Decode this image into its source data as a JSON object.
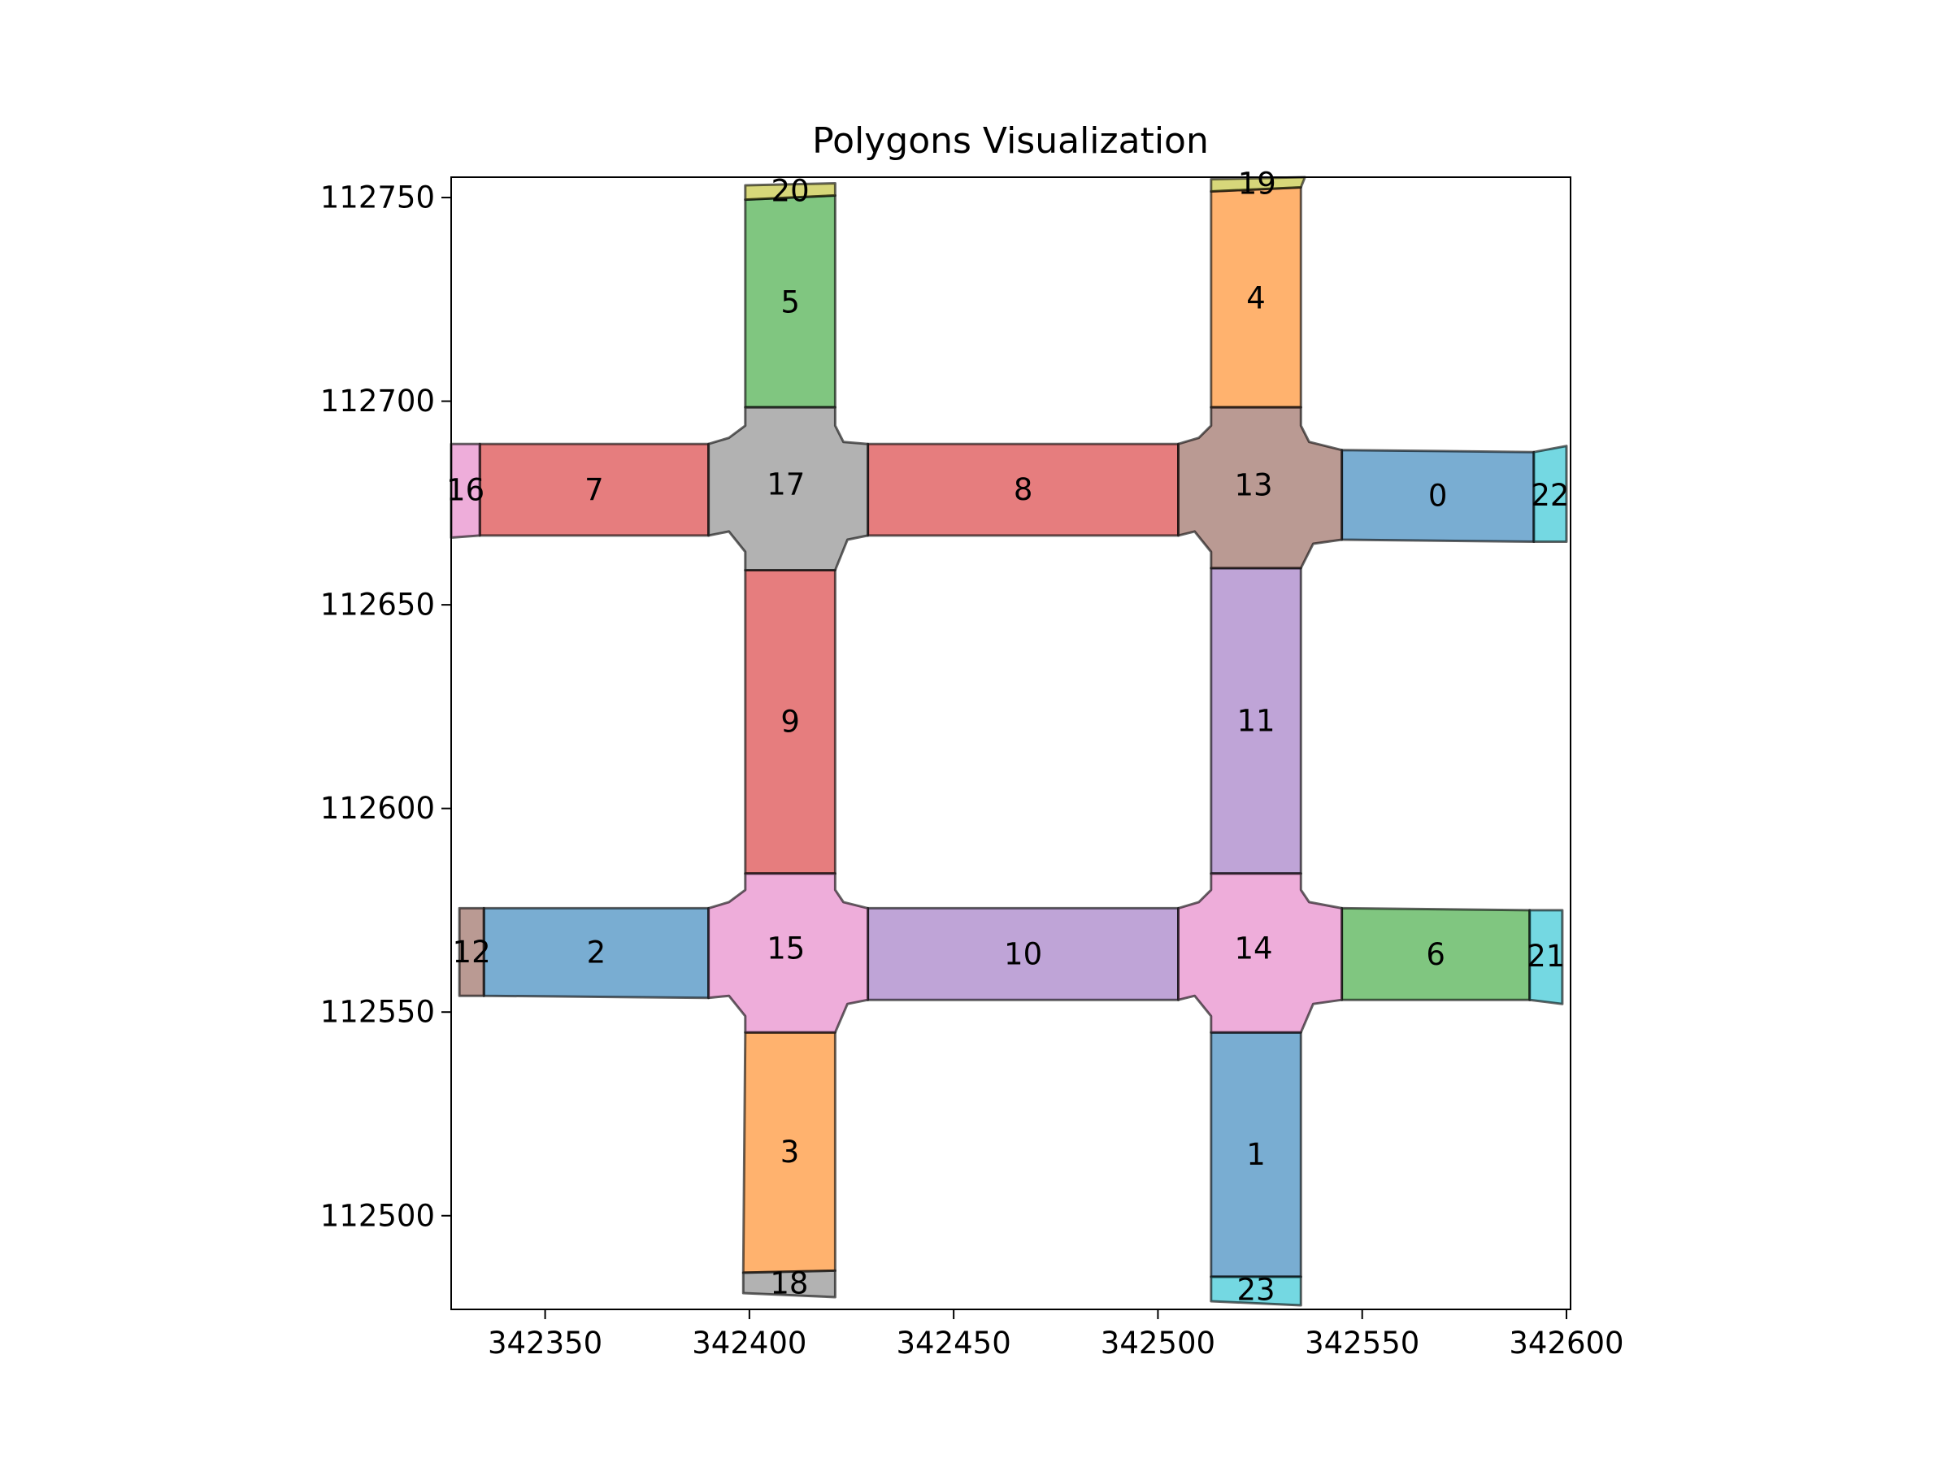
{
  "chart_data": {
    "type": "polygon-map",
    "title": "Polygons Visualization",
    "xlim": [
      342327,
      342601
    ],
    "ylim": [
      112477,
      112755
    ],
    "x_ticks": [
      {
        "value": 342350,
        "label": "342350"
      },
      {
        "value": 342400,
        "label": "342400"
      },
      {
        "value": 342450,
        "label": "342450"
      },
      {
        "value": 342500,
        "label": "342500"
      },
      {
        "value": 342550,
        "label": "342550"
      },
      {
        "value": 342600,
        "label": "342600"
      }
    ],
    "y_ticks": [
      {
        "value": 112750,
        "label": "112750"
      },
      {
        "value": 112700,
        "label": "112700"
      },
      {
        "value": 112650,
        "label": "112650"
      },
      {
        "value": 112600,
        "label": "112600"
      },
      {
        "value": 112550,
        "label": "112550"
      },
      {
        "value": 112500,
        "label": "112500"
      }
    ],
    "polygons": [
      {
        "id": "0",
        "label": "0",
        "color": "#1f77b4",
        "points": [
          [
            342545,
            112688
          ],
          [
            342592,
            112687.5
          ],
          [
            342592,
            112665.5
          ],
          [
            342545,
            112666
          ]
        ]
      },
      {
        "id": "1",
        "label": "1",
        "color": "#1f77b4",
        "points": [
          [
            342513,
            112545
          ],
          [
            342535,
            112545
          ],
          [
            342535,
            112485
          ],
          [
            342513,
            112485
          ]
        ]
      },
      {
        "id": "2",
        "label": "2",
        "color": "#1f77b4",
        "points": [
          [
            342335,
            112575.5
          ],
          [
            342390,
            112575.5
          ],
          [
            342390,
            112553.5
          ],
          [
            342335,
            112554
          ]
        ]
      },
      {
        "id": "3",
        "label": "3",
        "color": "#ff7f0e",
        "points": [
          [
            342399,
            112545
          ],
          [
            342421,
            112545
          ],
          [
            342421,
            112486.5
          ],
          [
            342398.5,
            112486
          ]
        ]
      },
      {
        "id": "4",
        "label": "4",
        "color": "#ff7f0e",
        "points": [
          [
            342513,
            112751.5
          ],
          [
            342535,
            112752.5
          ],
          [
            342535,
            112698.5
          ],
          [
            342513,
            112698.5
          ]
        ]
      },
      {
        "id": "5",
        "label": "5",
        "color": "#2ca02c",
        "points": [
          [
            342399,
            112749.5
          ],
          [
            342421,
            112750.5
          ],
          [
            342421,
            112698.5
          ],
          [
            342399,
            112698.5
          ]
        ]
      },
      {
        "id": "6",
        "label": "6",
        "color": "#2ca02c",
        "points": [
          [
            342545,
            112575.5
          ],
          [
            342591,
            112575
          ],
          [
            342591,
            112553
          ],
          [
            342545,
            112553
          ]
        ]
      },
      {
        "id": "7",
        "label": "7",
        "color": "#d62728",
        "points": [
          [
            342334,
            112689.5
          ],
          [
            342390,
            112689.5
          ],
          [
            342390,
            112667
          ],
          [
            342334,
            112667
          ]
        ]
      },
      {
        "id": "8",
        "label": "8",
        "color": "#d62728",
        "points": [
          [
            342429,
            112689.5
          ],
          [
            342505,
            112689.5
          ],
          [
            342505,
            112667
          ],
          [
            342429,
            112667
          ]
        ]
      },
      {
        "id": "9",
        "label": "9",
        "color": "#d62728",
        "points": [
          [
            342399,
            112658.5
          ],
          [
            342421,
            112658.5
          ],
          [
            342421,
            112584
          ],
          [
            342399,
            112584
          ]
        ]
      },
      {
        "id": "10",
        "label": "10",
        "color": "#9467bd",
        "points": [
          [
            342429,
            112575.5
          ],
          [
            342505,
            112575.5
          ],
          [
            342505,
            112553
          ],
          [
            342429,
            112553
          ]
        ]
      },
      {
        "id": "11",
        "label": "11",
        "color": "#9467bd",
        "points": [
          [
            342513,
            112659
          ],
          [
            342535,
            112659
          ],
          [
            342535,
            112584
          ],
          [
            342513,
            112584
          ]
        ]
      },
      {
        "id": "12",
        "label": "12",
        "color": "#8c564b",
        "points": [
          [
            342329,
            112575.5
          ],
          [
            342335,
            112575.5
          ],
          [
            342335,
            112554
          ],
          [
            342329,
            112554
          ]
        ]
      },
      {
        "id": "13",
        "label": "13",
        "color": "#8c564b",
        "points": [
          [
            342513,
            112698.5
          ],
          [
            342535,
            112698.5
          ],
          [
            342535,
            112694
          ],
          [
            342537,
            112690
          ],
          [
            342545,
            112688
          ],
          [
            342545,
            112666
          ],
          [
            342538,
            112665
          ],
          [
            342535,
            112659
          ],
          [
            342513,
            112659
          ],
          [
            342513,
            112663
          ],
          [
            342509,
            112668
          ],
          [
            342505,
            112667
          ],
          [
            342505,
            112689.5
          ],
          [
            342510,
            112691
          ],
          [
            342513,
            112694
          ]
        ]
      },
      {
        "id": "14",
        "label": "14",
        "color": "#e377c2",
        "points": [
          [
            342513,
            112584
          ],
          [
            342535,
            112584
          ],
          [
            342535,
            112580
          ],
          [
            342537,
            112577
          ],
          [
            342545,
            112575.5
          ],
          [
            342545,
            112553
          ],
          [
            342538,
            112552
          ],
          [
            342535,
            112545
          ],
          [
            342513,
            112545
          ],
          [
            342513,
            112549
          ],
          [
            342509,
            112554
          ],
          [
            342505,
            112553
          ],
          [
            342505,
            112575.5
          ],
          [
            342510,
            112577
          ],
          [
            342513,
            112580
          ]
        ]
      },
      {
        "id": "15",
        "label": "15",
        "color": "#e377c2",
        "points": [
          [
            342399,
            112584
          ],
          [
            342421,
            112584
          ],
          [
            342421,
            112580
          ],
          [
            342423,
            112577
          ],
          [
            342429,
            112575.5
          ],
          [
            342429,
            112553
          ],
          [
            342424,
            112552
          ],
          [
            342421,
            112545
          ],
          [
            342399,
            112545
          ],
          [
            342399,
            112549
          ],
          [
            342395,
            112554
          ],
          [
            342390,
            112553.5
          ],
          [
            342390,
            112575.5
          ],
          [
            342395,
            112577
          ],
          [
            342399,
            112580
          ]
        ]
      },
      {
        "id": "16",
        "label": "16",
        "color": "#e377c2",
        "points": [
          [
            342327,
            112689.5
          ],
          [
            342334,
            112689.5
          ],
          [
            342334,
            112667
          ],
          [
            342327,
            112666.5
          ]
        ]
      },
      {
        "id": "17",
        "label": "17",
        "color": "#7f7f7f",
        "points": [
          [
            342399,
            112698.5
          ],
          [
            342421,
            112698.5
          ],
          [
            342421,
            112694
          ],
          [
            342423,
            112690
          ],
          [
            342429,
            112689.5
          ],
          [
            342429,
            112667
          ],
          [
            342424,
            112666
          ],
          [
            342421,
            112658.5
          ],
          [
            342399,
            112658.5
          ],
          [
            342399,
            112663
          ],
          [
            342395,
            112668
          ],
          [
            342390,
            112667
          ],
          [
            342390,
            112689.5
          ],
          [
            342395,
            112691
          ],
          [
            342399,
            112694
          ]
        ]
      },
      {
        "id": "18",
        "label": "18",
        "color": "#7f7f7f",
        "points": [
          [
            342398.5,
            112486
          ],
          [
            342421,
            112486.5
          ],
          [
            342421,
            112480
          ],
          [
            342398.5,
            112481
          ]
        ]
      },
      {
        "id": "19",
        "label": "19",
        "color": "#bcbd22",
        "points": [
          [
            342513,
            112754.5
          ],
          [
            342536,
            112755
          ],
          [
            342535,
            112752.5
          ],
          [
            342513,
            112751.5
          ]
        ]
      },
      {
        "id": "20",
        "label": "20",
        "color": "#bcbd22",
        "points": [
          [
            342399,
            112753
          ],
          [
            342421,
            112753.5
          ],
          [
            342421,
            112750.5
          ],
          [
            342399,
            112749.5
          ]
        ]
      },
      {
        "id": "21",
        "label": "21",
        "color": "#17becf",
        "points": [
          [
            342591,
            112575
          ],
          [
            342599,
            112575
          ],
          [
            342599,
            112552
          ],
          [
            342591,
            112553
          ]
        ]
      },
      {
        "id": "22",
        "label": "22",
        "color": "#17becf",
        "points": [
          [
            342592,
            112687.5
          ],
          [
            342600,
            112689
          ],
          [
            342600,
            112665.5
          ],
          [
            342592,
            112665.5
          ]
        ]
      },
      {
        "id": "23",
        "label": "23",
        "color": "#17becf",
        "points": [
          [
            342513,
            112485
          ],
          [
            342535,
            112485
          ],
          [
            342535,
            112478
          ],
          [
            342513,
            112479
          ]
        ]
      }
    ]
  }
}
